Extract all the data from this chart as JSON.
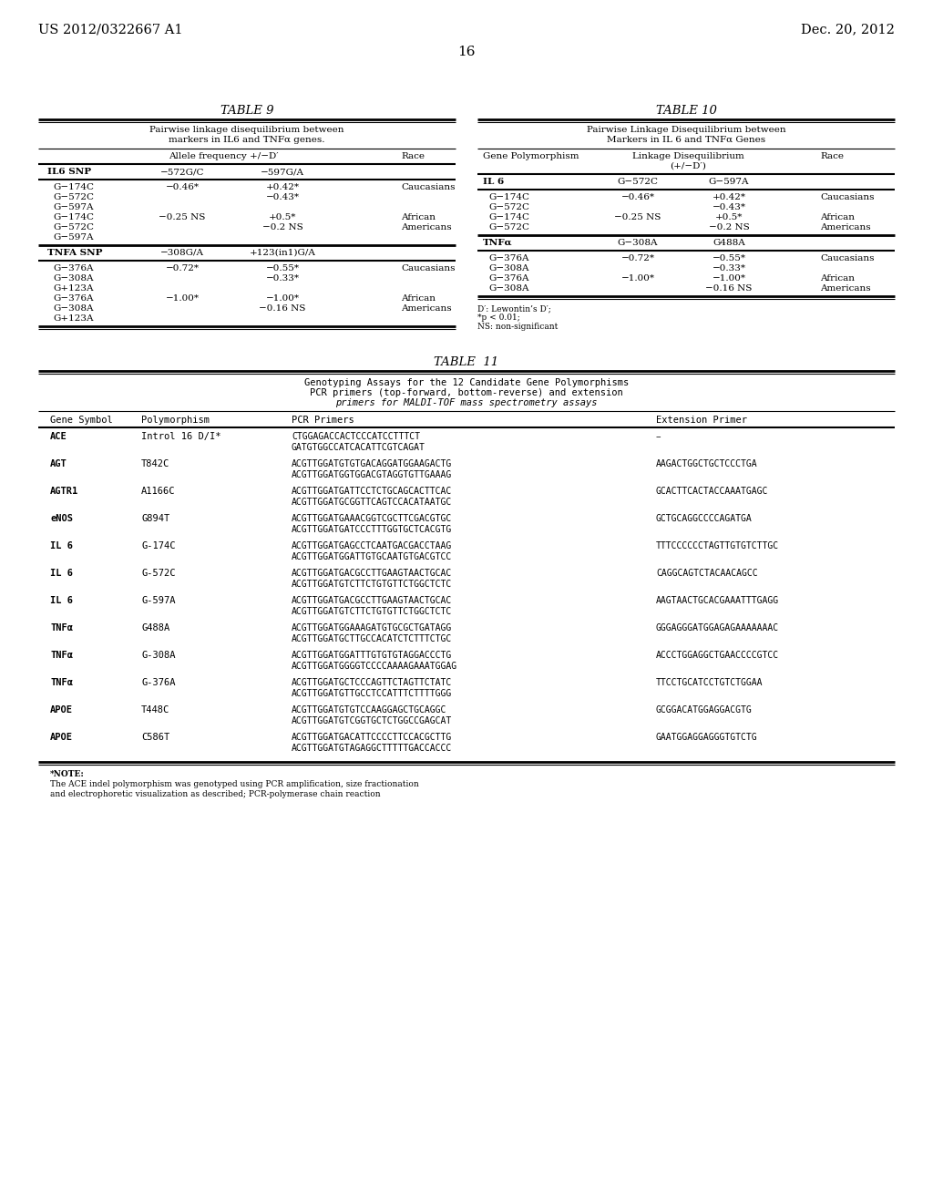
{
  "background_color": "#ffffff",
  "page_header_left": "US 2012/0322667 A1",
  "page_header_right": "Dec. 20, 2012",
  "page_number": "16",
  "table9_title": "TABLE 9",
  "table9_subtitle1": "Pairwise linkage disequilibrium between",
  "table9_subtitle2": "markers in IL6 and TNFα genes.",
  "table9_col1": "IL6 SNP",
  "table9_col2": "−572G/C",
  "table9_col3": "−597G/A",
  "table9_col4": "Race",
  "table9_colheader": "Allele frequency +/−D′",
  "table9_il6_rows": [
    [
      "G−174C",
      "−0.46*",
      "+0.42*",
      "Caucasians"
    ],
    [
      "G−572C",
      "",
      "−0.43*",
      ""
    ],
    [
      "G−597A",
      "",
      "",
      ""
    ],
    [
      "G−174C",
      "−0.25 NS",
      "+0.5*",
      "African"
    ],
    [
      "G−572C",
      "",
      "−0.2 NS",
      "Americans"
    ],
    [
      "G−597A",
      "",
      "",
      ""
    ]
  ],
  "table9_tnfa_col1": "TNFA SNP",
  "table9_tnfa_col2": "−308G/A",
  "table9_tnfa_col3": "+123(in1)G/A",
  "table9_tnfa_rows": [
    [
      "G−376A",
      "−0.72*",
      "−0.55*",
      "Caucasians"
    ],
    [
      "G−308A",
      "",
      "−0.33*",
      ""
    ],
    [
      "G+123A",
      "",
      "",
      ""
    ],
    [
      "G−376A",
      "−1.00*",
      "−1.00*",
      "African"
    ],
    [
      "G−308A",
      "",
      "−0.16 NS",
      "Americans"
    ],
    [
      "G+123A",
      "",
      "",
      ""
    ]
  ],
  "table10_title": "TABLE 10",
  "table10_subtitle1": "Pairwise Linkage Disequilibrium between",
  "table10_subtitle2": "Markers in IL 6 and TNFα Genes",
  "table10_col1": "Gene Polymorphism",
  "table10_col2": "G−572C",
  "table10_col3": "G−597A",
  "table10_col4": "Race",
  "table10_il6_label": "IL 6",
  "table10_il6_rows": [
    [
      "G−174C",
      "−0.46*",
      "+0.42*",
      "Caucasians"
    ],
    [
      "G−572C",
      "",
      "−0.43*",
      ""
    ],
    [
      "G−174C",
      "−0.25 NS",
      "+0.5*",
      "African"
    ],
    [
      "G−572C",
      "",
      "−0.2 NS",
      "Americans"
    ]
  ],
  "table10_tnfa_label": "TNFα",
  "table10_tnfa_col2": "G−308A",
  "table10_tnfa_col3": "G488A",
  "table10_tnfa_rows": [
    [
      "G−376A",
      "−0.72*",
      "−0.55*",
      "Caucasians"
    ],
    [
      "G−308A",
      "",
      "−0.33*",
      ""
    ],
    [
      "G−376A",
      "−1.00*",
      "−1.00*",
      "African"
    ],
    [
      "G−308A",
      "",
      "−0.16 NS",
      "Americans"
    ]
  ],
  "table10_footnote1": "D′: Lewontin’s D′;",
  "table10_footnote2": "*p < 0.01;",
  "table10_footnote3": "NS: non-significant",
  "table11_title": "TABLE  11",
  "table11_subtitle1": "Genotyping Assays for the 12 Candidate Gene Polymorphisms",
  "table11_subtitle2": "PCR primers (top-forward, bottom-reverse) and extension",
  "table11_subtitle3": "primers for MALDI-TOF mass spectrometry assays",
  "table11_col1": "Gene Symbol",
  "table11_col2": "Polymorphism",
  "table11_col3": "PCR Primers",
  "table11_col4": "Extension Primer",
  "table11_rows": [
    {
      "gene": "ACE",
      "polymorphism": "Introl 16 D/I*",
      "pcr1": "CTGGAGACCACTCCCATCCTTTCT",
      "pcr2": "GATGTGGCCATCACATTCGTCAGAT",
      "ext": "–"
    },
    {
      "gene": "AGT",
      "polymorphism": "T842C",
      "pcr1": "ACGTTGGATGTGTGACAGGATGGAAGACTG",
      "pcr2": "ACGTTGGATGGTGGACGTAGGTGTTGAAAG",
      "ext": "AAGACTGGCTGCTCCCTGA"
    },
    {
      "gene": "AGTR1",
      "polymorphism": "A1166C",
      "pcr1": "ACGTTGGATGATTCCTCTGCAGCACTTCAC",
      "pcr2": "ACGTTGGATGCGGTTCAGTCCACATAATGC",
      "ext": "GCACTTCACTACCAAATGAGC"
    },
    {
      "gene": "eNOS",
      "polymorphism": "G894T",
      "pcr1": "ACGTTGGATGAAACGGTCGCTTCGACGTGC",
      "pcr2": "ACGTTGGATGATCCCTTTGGTGCTCACGTG",
      "ext": "GCTGCAGGCCCCAGATGA"
    },
    {
      "gene": "IL 6",
      "polymorphism": "G-174C",
      "pcr1": "ACGTTGGATGAGCCTCAATGACGACCTAAG",
      "pcr2": "ACGTTGGATGGATTGTGCAATGTGACGTCC",
      "ext": "TTTCCCCCCTAGTTGTGTCTTGC"
    },
    {
      "gene": "IL 6",
      "polymorphism": "G-572C",
      "pcr1": "ACGTTGGATGACGCCTTGAAGTAACTGCAC",
      "pcr2": "ACGTTGGATGTCTTCTGTGTTCTGGCTCTC",
      "ext": "CAGGCAGTCTACAACAGCC"
    },
    {
      "gene": "IL 6",
      "polymorphism": "G-597A",
      "pcr1": "ACGTTGGATGACGCCTTGAAGTAACTGCAC",
      "pcr2": "ACGTTGGATGTCTTCTGTGTTCTGGCTCTC",
      "ext": "AAGTAACTGCACGAAATTTGAGG"
    },
    {
      "gene": "TNFα",
      "polymorphism": "G488A",
      "pcr1": "ACGTTGGATGGAAAGATGTGCGCTGATAGG",
      "pcr2": "ACGTTGGATGCTTGCCACATCTCTTTCTGC",
      "ext": "GGGAGGGATGGAGAGAAAAAAAC"
    },
    {
      "gene": "TNFα",
      "polymorphism": "G-308A",
      "pcr1": "ACGTTGGATGGATTTGTGTGTAGGACCCTG",
      "pcr2": "ACGTTGGATGGGGTCCCCAAAAGAAATGGAG",
      "ext": "ACCCTGGAGGCTGAACCCCGTCC"
    },
    {
      "gene": "TNFα",
      "polymorphism": "G-376A",
      "pcr1": "ACGTTGGATGCTCCCAGTTCTAGTTCTATC",
      "pcr2": "ACGTTGGATGTTGCCTCCATTTCTTTTGGG",
      "ext": "TTCCTGCATCCTGTCTGGAA"
    },
    {
      "gene": "APOE",
      "polymorphism": "T448C",
      "pcr1": "ACGTTGGATGTGTCCAAGGAGCTGCAGGC",
      "pcr2": "ACGTTGGATGTCGGTGCTCTGGCCGAGCAT",
      "ext": "GCGGACATGGAGGACGTG"
    },
    {
      "gene": "APOE",
      "polymorphism": "C586T",
      "pcr1": "ACGTTGGATGACATTCCCCTTCCACGCTTG",
      "pcr2": "ACGTTGGATGTAGAGGCTTTTTGACCACCC",
      "ext": "GAATGGAGGAGGGTGTCTG"
    }
  ],
  "table11_footnote1": "*NOTE:",
  "table11_footnote2": "The ACE indel polymorphism was genotyped using PCR amplification, size fractionation",
  "table11_footnote3": "and electrophoretic visualization as described; PCR-polymerase chain reaction"
}
